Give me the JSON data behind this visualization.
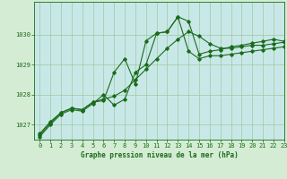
{
  "title": "Graphe pression niveau de la mer (hPa)",
  "bg_color": "#d4ecd4",
  "plot_bg_color": "#c8e8e8",
  "line_color": "#1a6b1a",
  "grid_color": "#a0c8a0",
  "xlim": [
    -0.5,
    23
  ],
  "ylim": [
    1026.5,
    1031.1
  ],
  "yticks": [
    1027,
    1028,
    1029,
    1030
  ],
  "xticks": [
    0,
    1,
    2,
    3,
    4,
    5,
    6,
    7,
    8,
    9,
    10,
    11,
    12,
    13,
    14,
    15,
    16,
    17,
    18,
    19,
    20,
    21,
    22,
    23
  ],
  "series1_x": [
    0,
    1,
    2,
    3,
    4,
    5,
    6,
    7,
    8,
    9,
    10,
    11,
    12,
    13,
    14,
    15,
    16,
    17,
    18,
    19,
    20,
    21,
    22,
    23
  ],
  "series1_y": [
    1026.7,
    1027.1,
    1027.4,
    1027.55,
    1027.5,
    1027.75,
    1027.85,
    1027.95,
    1028.15,
    1028.5,
    1028.85,
    1029.2,
    1029.55,
    1029.85,
    1030.1,
    1029.95,
    1029.7,
    1029.55,
    1029.55,
    1029.6,
    1029.65,
    1029.65,
    1029.7,
    1029.75
  ],
  "series2_x": [
    0,
    1,
    2,
    3,
    4,
    5,
    6,
    7,
    8,
    9,
    10,
    11,
    12,
    13,
    14,
    15,
    16,
    17,
    18,
    19,
    20,
    21,
    22,
    23
  ],
  "series2_y": [
    1026.6,
    1027.0,
    1027.35,
    1027.5,
    1027.45,
    1027.7,
    1028.0,
    1027.65,
    1027.85,
    1028.75,
    1029.0,
    1030.05,
    1030.1,
    1030.6,
    1029.45,
    1029.2,
    1029.3,
    1029.3,
    1029.35,
    1029.4,
    1029.45,
    1029.5,
    1029.55,
    1029.6
  ],
  "series3_x": [
    0,
    1,
    2,
    3,
    4,
    5,
    6,
    7,
    8,
    9,
    10,
    11,
    12,
    13,
    14,
    15,
    16,
    17,
    18,
    19,
    20,
    21,
    22,
    23
  ],
  "series3_y": [
    1026.65,
    1027.05,
    1027.4,
    1027.55,
    1027.5,
    1027.75,
    1027.8,
    1028.75,
    1029.2,
    1028.35,
    1029.8,
    1030.05,
    1030.1,
    1030.6,
    1030.45,
    1029.35,
    1029.45,
    1029.5,
    1029.6,
    1029.65,
    1029.72,
    1029.78,
    1029.85,
    1029.78
  ],
  "label_fontsize": 5.5,
  "tick_fontsize": 5.0
}
